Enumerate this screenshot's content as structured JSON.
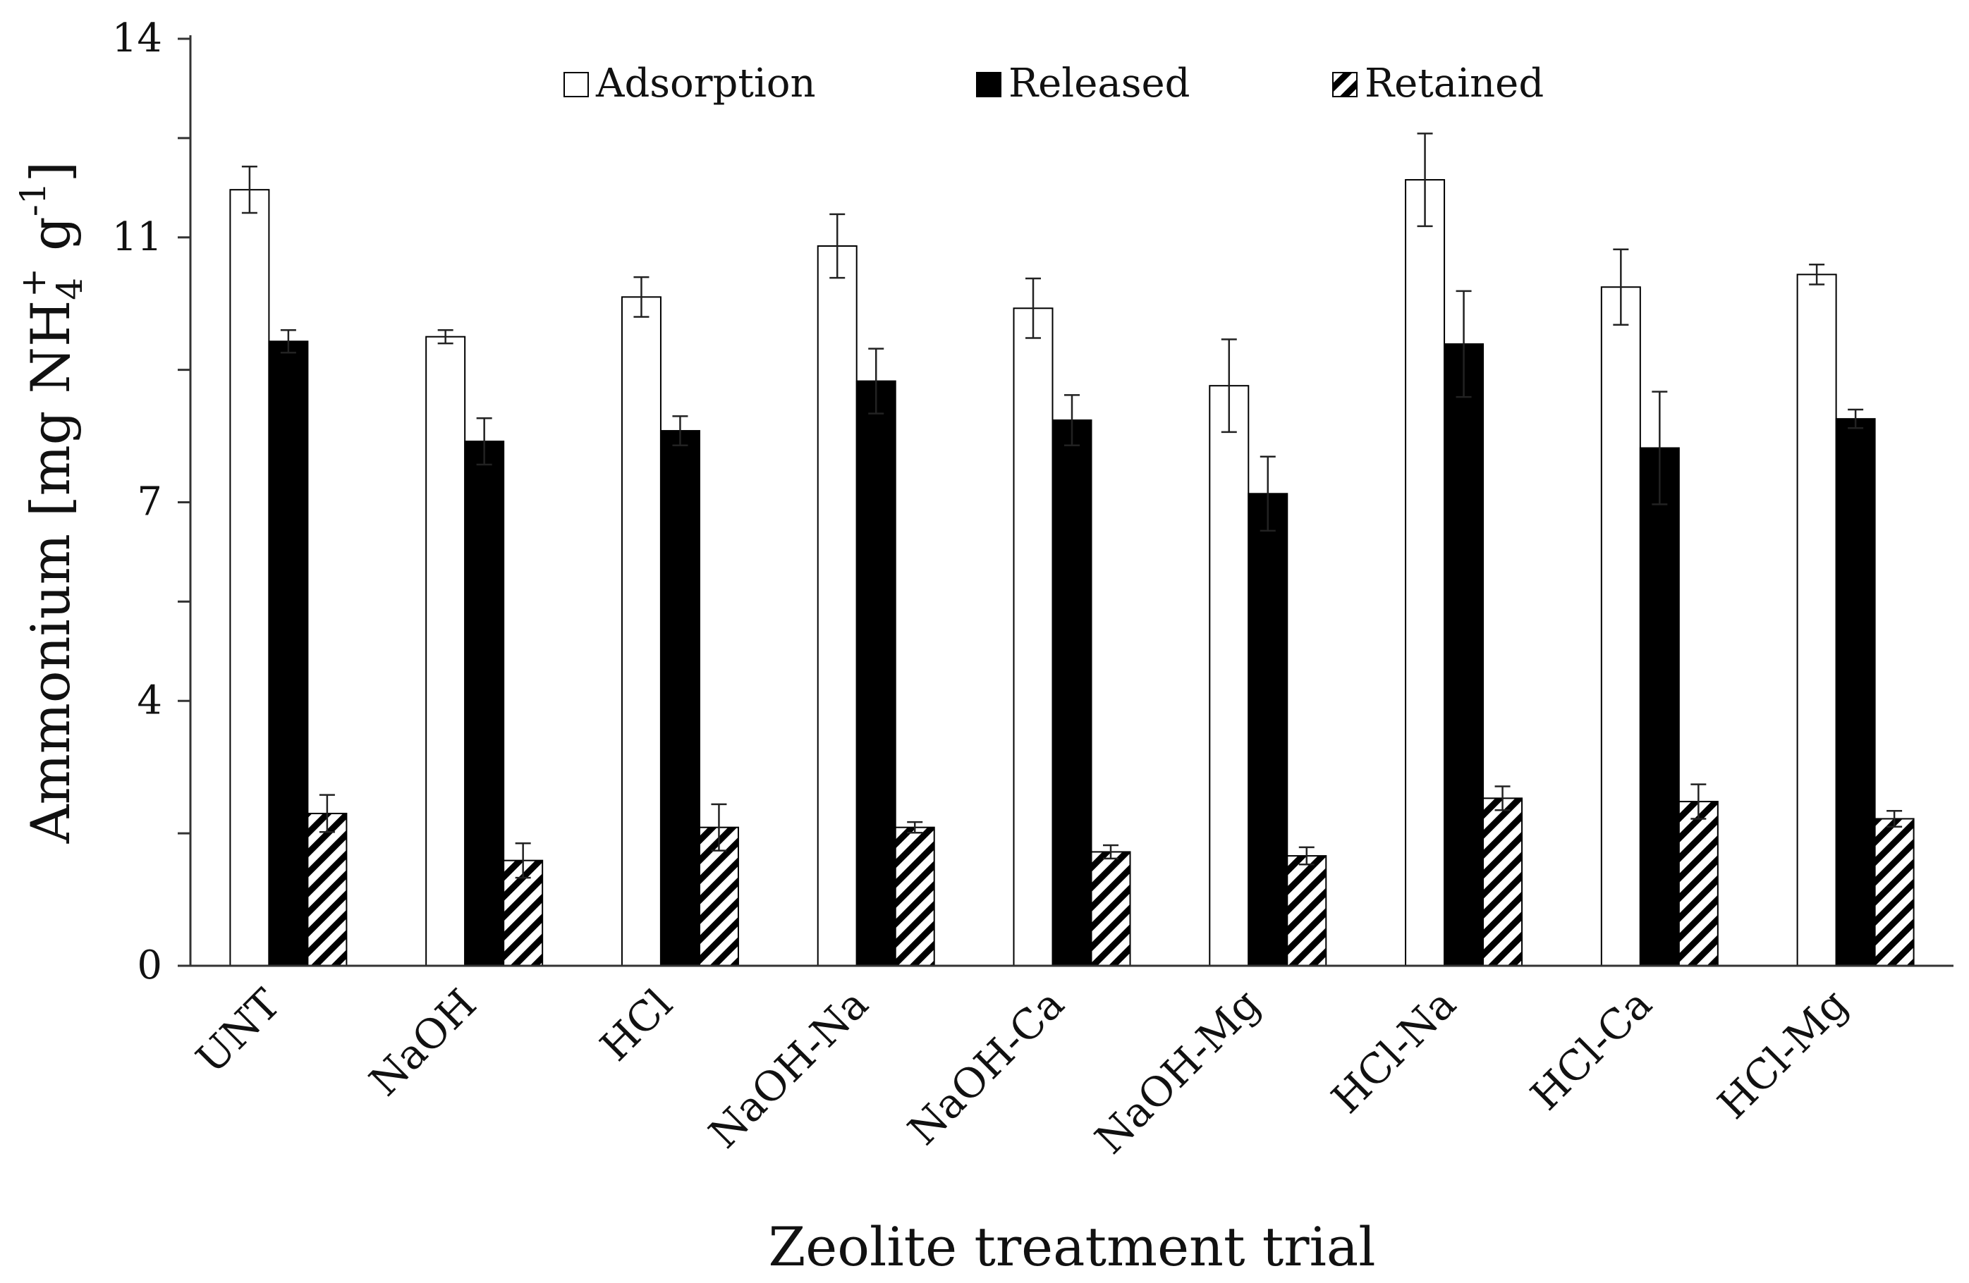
{
  "colors": {
    "axis": "#333333",
    "adsorption": "#ffffff",
    "released": "#000000",
    "retained_hatch": "#000000",
    "stroke": "#000000"
  },
  "chart_data": {
    "type": "bar",
    "title": "",
    "xlabel": "Zeolite treatment trial",
    "ylabel": "Ammonium [mg NH4+ g-1]",
    "ylabel_parts": {
      "main": "Ammonium [mg NH",
      "sub": "4",
      "sup": "+",
      "unit": " g",
      "unit_sup": "-1",
      "close": "]"
    },
    "ylim": [
      0,
      14
    ],
    "yticks": [
      0,
      4,
      7,
      11,
      14
    ],
    "grid": false,
    "legend_position": "top",
    "categories": [
      "UNT",
      "NaOH",
      "HCl",
      "NaOH-Na",
      "NaOH-Ca",
      "NaOH-Mg",
      "HCl-Na",
      "HCl-Ca",
      "HCl-Mg"
    ],
    "series": [
      {
        "name": "Adsorption",
        "style": "white",
        "values": [
          11.72,
          9.5,
          10.1,
          10.87,
          9.93,
          8.76,
          11.87,
          10.25,
          10.44
        ],
        "errors": [
          0.35,
          0.1,
          0.3,
          0.48,
          0.45,
          0.7,
          0.7,
          0.57,
          0.15
        ]
      },
      {
        "name": "Released",
        "style": "black",
        "values": [
          9.43,
          7.92,
          8.08,
          8.83,
          8.24,
          7.13,
          9.39,
          7.82,
          8.26
        ],
        "errors": [
          0.17,
          0.35,
          0.22,
          0.49,
          0.38,
          0.56,
          0.8,
          0.85,
          0.14
        ]
      },
      {
        "name": "Retained",
        "style": "hatch",
        "values": [
          2.3,
          1.59,
          2.09,
          2.09,
          1.72,
          1.66,
          2.53,
          2.48,
          2.22
        ],
        "errors": [
          0.28,
          0.26,
          0.35,
          0.08,
          0.1,
          0.13,
          0.18,
          0.26,
          0.12
        ]
      }
    ]
  }
}
